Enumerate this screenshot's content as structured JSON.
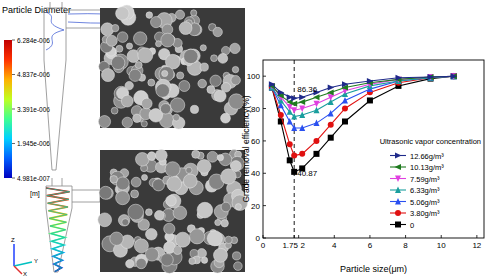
{
  "chart_data": {
    "type": "line",
    "x_label": "Particle size(μm)",
    "y_label": "Grade removal efficiency(%)",
    "x": [
      0.5,
      1.0,
      1.5,
      1.75,
      2.2,
      3.0,
      3.8,
      4.6,
      6.0,
      7.6,
      9.4,
      10.7
    ],
    "xlim": [
      0,
      12.4
    ],
    "xticks": [
      0,
      1.75,
      2,
      4,
      6,
      8,
      10,
      12
    ],
    "ylim": [
      0,
      110
    ],
    "yticks": [
      0,
      20,
      40,
      60,
      80,
      100
    ],
    "legend": "lower right",
    "legend_title": "Ultrasonic vapor concentration",
    "vline": 1.75,
    "line_style": "dashed",
    "annotations": [
      {
        "text": "86.36",
        "x": 1.75,
        "y": 86.36
      },
      {
        "text": "40.87",
        "x": 1.75,
        "y": 40.87
      }
    ],
    "series": [
      {
        "name": "12.66g/m³",
        "color": "#1f2a8a",
        "marker": "triangle-right",
        "values": [
          95,
          90,
          87,
          86.36,
          87,
          90,
          93,
          95,
          97,
          99,
          99.5,
          100
        ]
      },
      {
        "name": "10.13g/m³",
        "color": "#1f7a1f",
        "marker": "triangle-left",
        "values": [
          94,
          88,
          84,
          83,
          84,
          87,
          90,
          93,
          96,
          98,
          99.5,
          100
        ]
      },
      {
        "name": "7.59g/m³",
        "color": "#e040e0",
        "marker": "triangle-down",
        "values": [
          94,
          87,
          81,
          79,
          80,
          83,
          87,
          91,
          95,
          98,
          99.5,
          100
        ]
      },
      {
        "name": "6.33g/m³",
        "color": "#1a9e9e",
        "marker": "triangle-up",
        "values": [
          93,
          85,
          78,
          75,
          76,
          79,
          84,
          89,
          94,
          97,
          99,
          100
        ]
      },
      {
        "name": "5.06g/m³",
        "color": "#2a50f0",
        "marker": "triangle-up",
        "values": [
          93,
          82,
          72,
          68,
          68,
          71,
          77,
          85,
          92,
          97,
          99,
          100
        ]
      },
      {
        "name": "3.80g/m³",
        "color": "#e01010",
        "marker": "circle",
        "values": [
          93,
          76,
          58,
          51,
          52,
          60,
          70,
          80,
          90,
          96,
          99,
          100
        ]
      },
      {
        "name": "0",
        "color": "#000000",
        "marker": "square",
        "values": [
          93,
          72,
          48,
          40.87,
          43,
          52,
          62,
          72,
          85,
          94,
          98.5,
          100
        ]
      }
    ]
  },
  "simulation_panel": {
    "title": "Particle Diameter",
    "unit": "[m]",
    "colorbar_range": [
      4.981e-07,
      6.284e-06
    ],
    "colorbar_ticks": [
      {
        "value": 6.284e-06,
        "label": "6.284e-006"
      },
      {
        "value": 4.837e-06,
        "label": "4.837e-006"
      },
      {
        "value": 3.391e-06,
        "label": "3.391e-006"
      },
      {
        "value": 1.945e-06,
        "label": "1.945e-006"
      },
      {
        "value": 4.981e-07,
        "label": "4.981e-007"
      }
    ],
    "axes": [
      "X",
      "Y",
      "Z"
    ]
  }
}
